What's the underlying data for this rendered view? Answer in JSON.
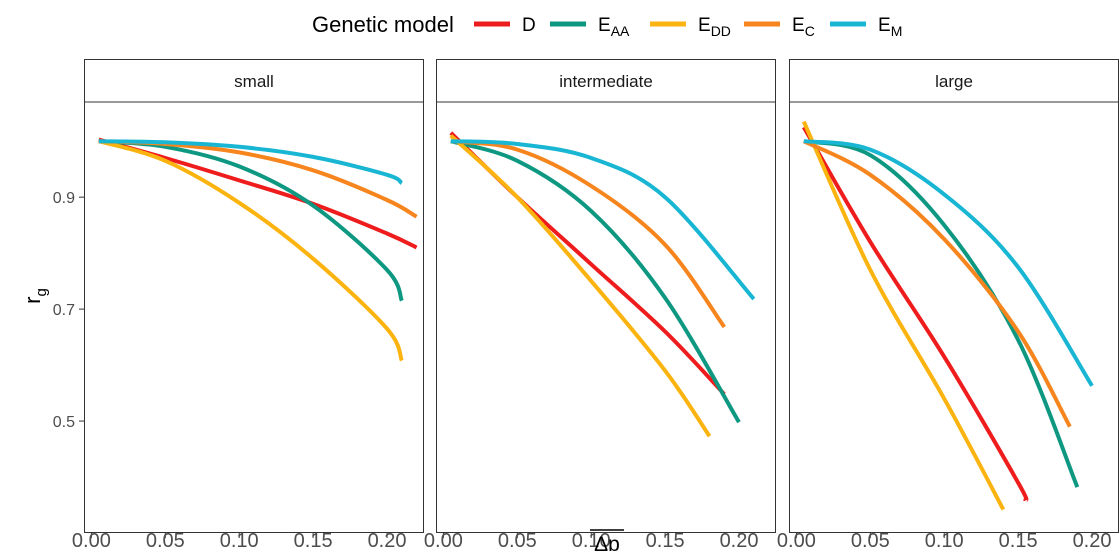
{
  "legend": {
    "title": "Genetic model",
    "entries": [
      {
        "main": "D",
        "sub": ""
      },
      {
        "main": "E",
        "sub": "AA"
      },
      {
        "main": "E",
        "sub": "DD"
      },
      {
        "main": "E",
        "sub": "C"
      },
      {
        "main": "E",
        "sub": "M"
      }
    ]
  },
  "chart_data": {
    "type": "line",
    "facets": [
      "small",
      "intermediate",
      "large"
    ],
    "xlabel": "Δp",
    "xlabel_overline": true,
    "ylabel_main": "r",
    "ylabel_sub": "g",
    "xlim": [
      -0.005,
      0.225
    ],
    "ylim": [
      0.3,
      1.07
    ],
    "xticks": [
      0.0,
      0.05,
      0.1,
      0.15,
      0.2
    ],
    "xtick_labels": [
      "0.00",
      "0.05",
      "0.10",
      "0.15",
      "0.20"
    ],
    "yticks": [
      0.5,
      0.7,
      0.9
    ],
    "ytick_labels": [
      "0.5",
      "0.7",
      "0.9"
    ],
    "legend_position": "top",
    "series_colors": {
      "D": "#ee1c1c",
      "E_AA": "#0e9882",
      "E_DD": "#fbb30f",
      "E_C": "#f7851e",
      "E_M": "#18b6d3"
    },
    "panels": [
      {
        "facet": "small",
        "series": [
          {
            "key": "D",
            "x": [
              0.005,
              0.05,
              0.1,
              0.15,
              0.2,
              0.22
            ],
            "y": [
              1.003,
              0.97,
              0.93,
              0.888,
              0.835,
              0.81
            ]
          },
          {
            "key": "E_AA",
            "x": [
              0.005,
              0.05,
              0.1,
              0.15,
              0.2,
              0.21
            ],
            "y": [
              1.0,
              0.99,
              0.955,
              0.885,
              0.77,
              0.715
            ]
          },
          {
            "key": "E_DD",
            "x": [
              0.005,
              0.05,
              0.1,
              0.15,
              0.2,
              0.21
            ],
            "y": [
              1.0,
              0.965,
              0.89,
              0.79,
              0.665,
              0.608
            ]
          },
          {
            "key": "E_C",
            "x": [
              0.005,
              0.05,
              0.1,
              0.15,
              0.2,
              0.22
            ],
            "y": [
              1.0,
              0.995,
              0.98,
              0.948,
              0.895,
              0.865
            ]
          },
          {
            "key": "E_M",
            "x": [
              0.005,
              0.05,
              0.1,
              0.15,
              0.2,
              0.21
            ],
            "y": [
              1.0,
              0.998,
              0.99,
              0.972,
              0.94,
              0.925
            ]
          }
        ]
      },
      {
        "facet": "intermediate",
        "series": [
          {
            "key": "D",
            "x": [
              0.005,
              0.05,
              0.1,
              0.15,
              0.19
            ],
            "y": [
              1.015,
              0.9,
              0.78,
              0.66,
              0.548
            ]
          },
          {
            "key": "E_AA",
            "x": [
              0.005,
              0.05,
              0.1,
              0.15,
              0.2
            ],
            "y": [
              1.0,
              0.965,
              0.875,
              0.72,
              0.498
            ]
          },
          {
            "key": "E_DD",
            "x": [
              0.005,
              0.05,
              0.1,
              0.15,
              0.18
            ],
            "y": [
              1.01,
              0.9,
              0.75,
              0.59,
              0.473
            ]
          },
          {
            "key": "E_C",
            "x": [
              0.005,
              0.05,
              0.1,
              0.15,
              0.19
            ],
            "y": [
              1.0,
              0.985,
              0.92,
              0.815,
              0.668
            ]
          },
          {
            "key": "E_M",
            "x": [
              0.005,
              0.05,
              0.1,
              0.15,
              0.21
            ],
            "y": [
              1.0,
              0.995,
              0.97,
              0.9,
              0.718
            ]
          }
        ]
      },
      {
        "facet": "large",
        "series": [
          {
            "key": "D",
            "x": [
              0.005,
              0.05,
              0.1,
              0.15,
              0.155
            ],
            "y": [
              1.025,
              0.82,
              0.615,
              0.39,
              0.358
            ]
          },
          {
            "key": "E_AA",
            "x": [
              0.005,
              0.05,
              0.1,
              0.15,
              0.19
            ],
            "y": [
              1.0,
              0.975,
              0.85,
              0.645,
              0.382
            ]
          },
          {
            "key": "E_DD",
            "x": [
              0.005,
              0.05,
              0.1,
              0.14
            ],
            "y": [
              1.035,
              0.77,
              0.54,
              0.342
            ]
          },
          {
            "key": "E_C",
            "x": [
              0.005,
              0.05,
              0.1,
              0.15,
              0.185
            ],
            "y": [
              1.0,
              0.94,
              0.825,
              0.66,
              0.49
            ]
          },
          {
            "key": "E_M",
            "x": [
              0.005,
              0.05,
              0.1,
              0.15,
              0.2
            ],
            "y": [
              1.0,
              0.985,
              0.905,
              0.775,
              0.563
            ]
          }
        ]
      }
    ]
  }
}
